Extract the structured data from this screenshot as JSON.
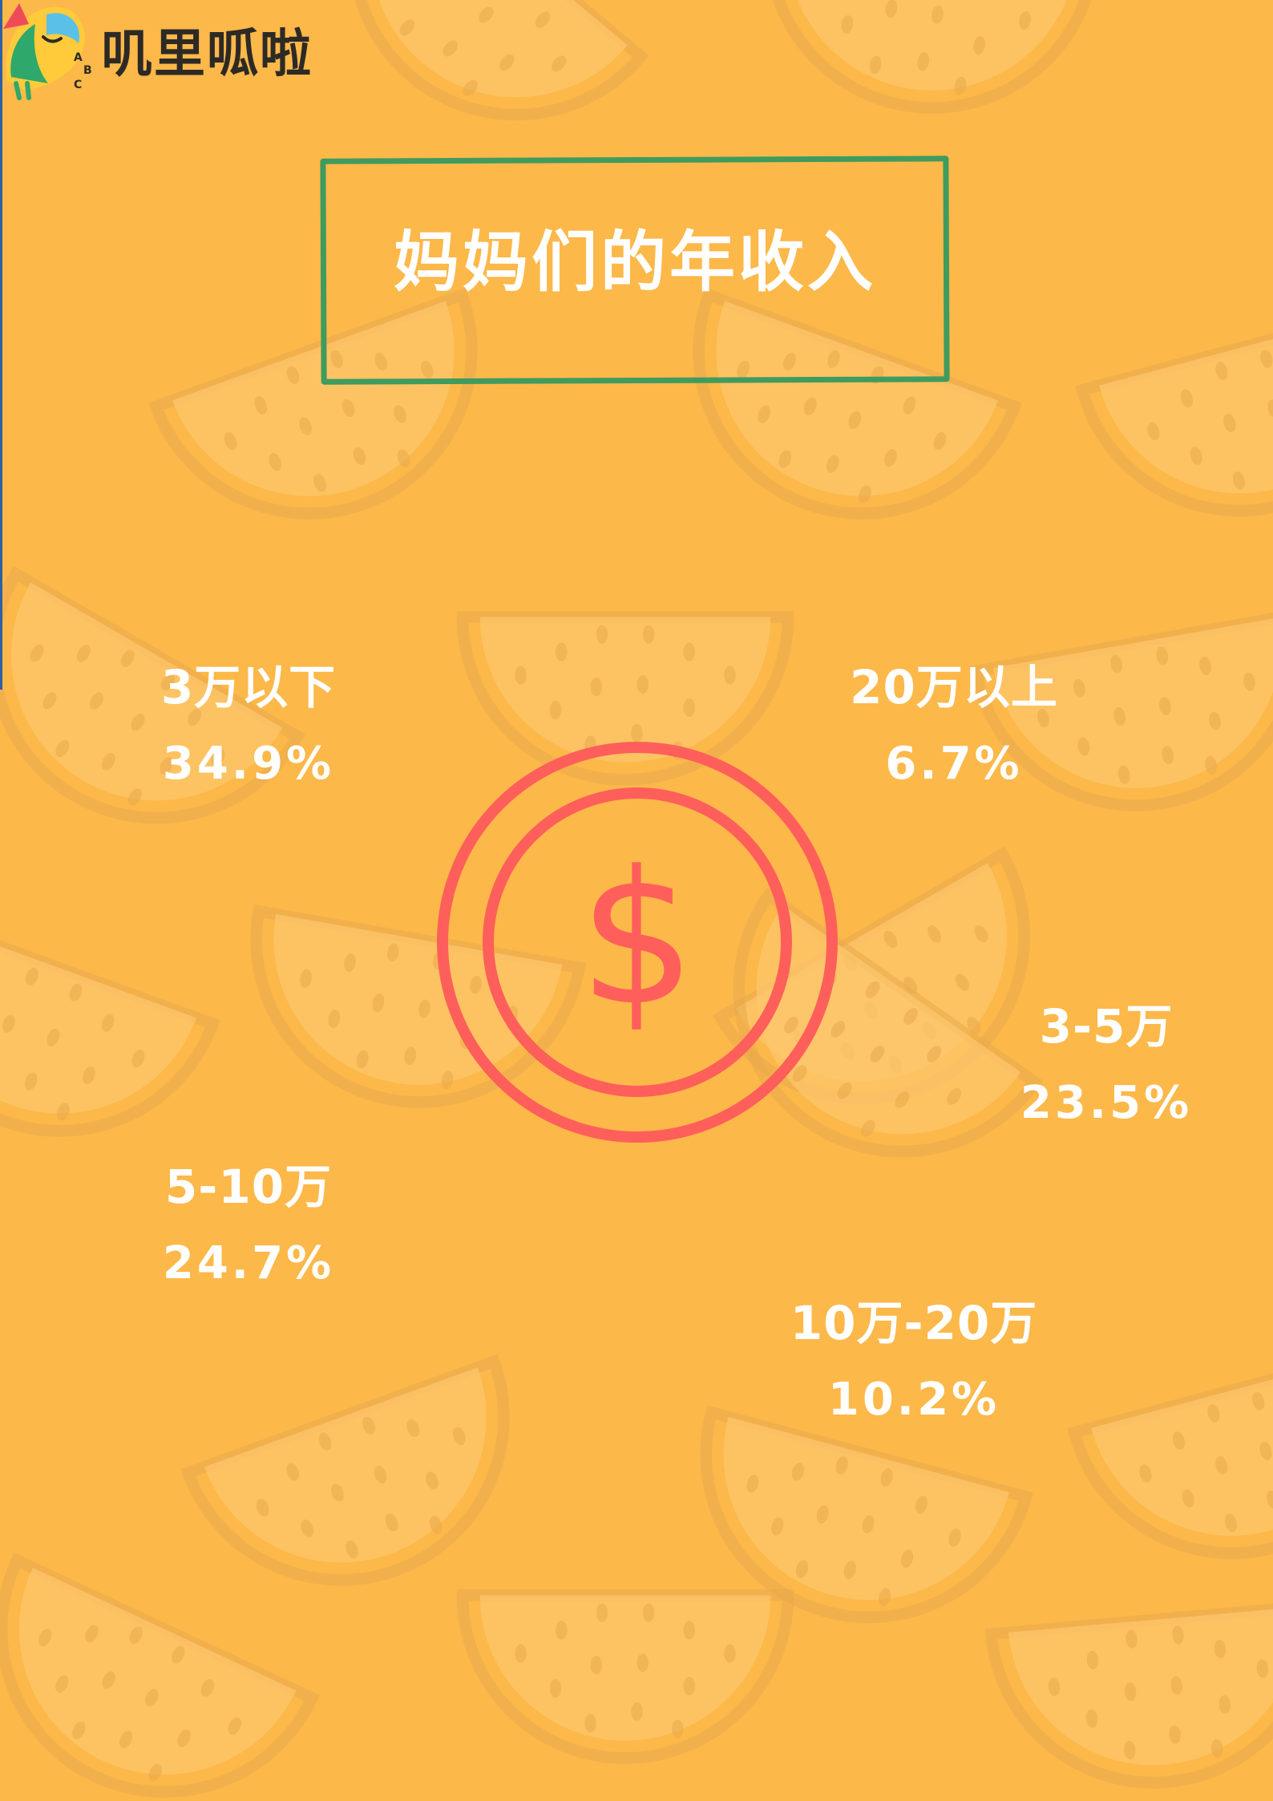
{
  "brand": {
    "name": "叽里呱啦",
    "logo_letters": [
      "A",
      "B",
      "C"
    ]
  },
  "title": "妈妈们的年收入",
  "center_icon": {
    "name": "dollar-coin-icon",
    "symbol": "$",
    "color": "#ff5f5b"
  },
  "colors": {
    "background": "#fcb849",
    "pattern": "#fdc76e",
    "pattern_line": "#e8a94c",
    "title_border": "#3f9b5e",
    "text": "#ffffff"
  },
  "income_groups": [
    {
      "label": "3万以下",
      "percent": "34.9%"
    },
    {
      "label": "20万以上",
      "percent": "6.7%"
    },
    {
      "label": "3-5万",
      "percent": "23.5%"
    },
    {
      "label": "5-10万",
      "percent": "24.7%"
    },
    {
      "label": "10万-20万",
      "percent": "10.2%"
    }
  ]
}
